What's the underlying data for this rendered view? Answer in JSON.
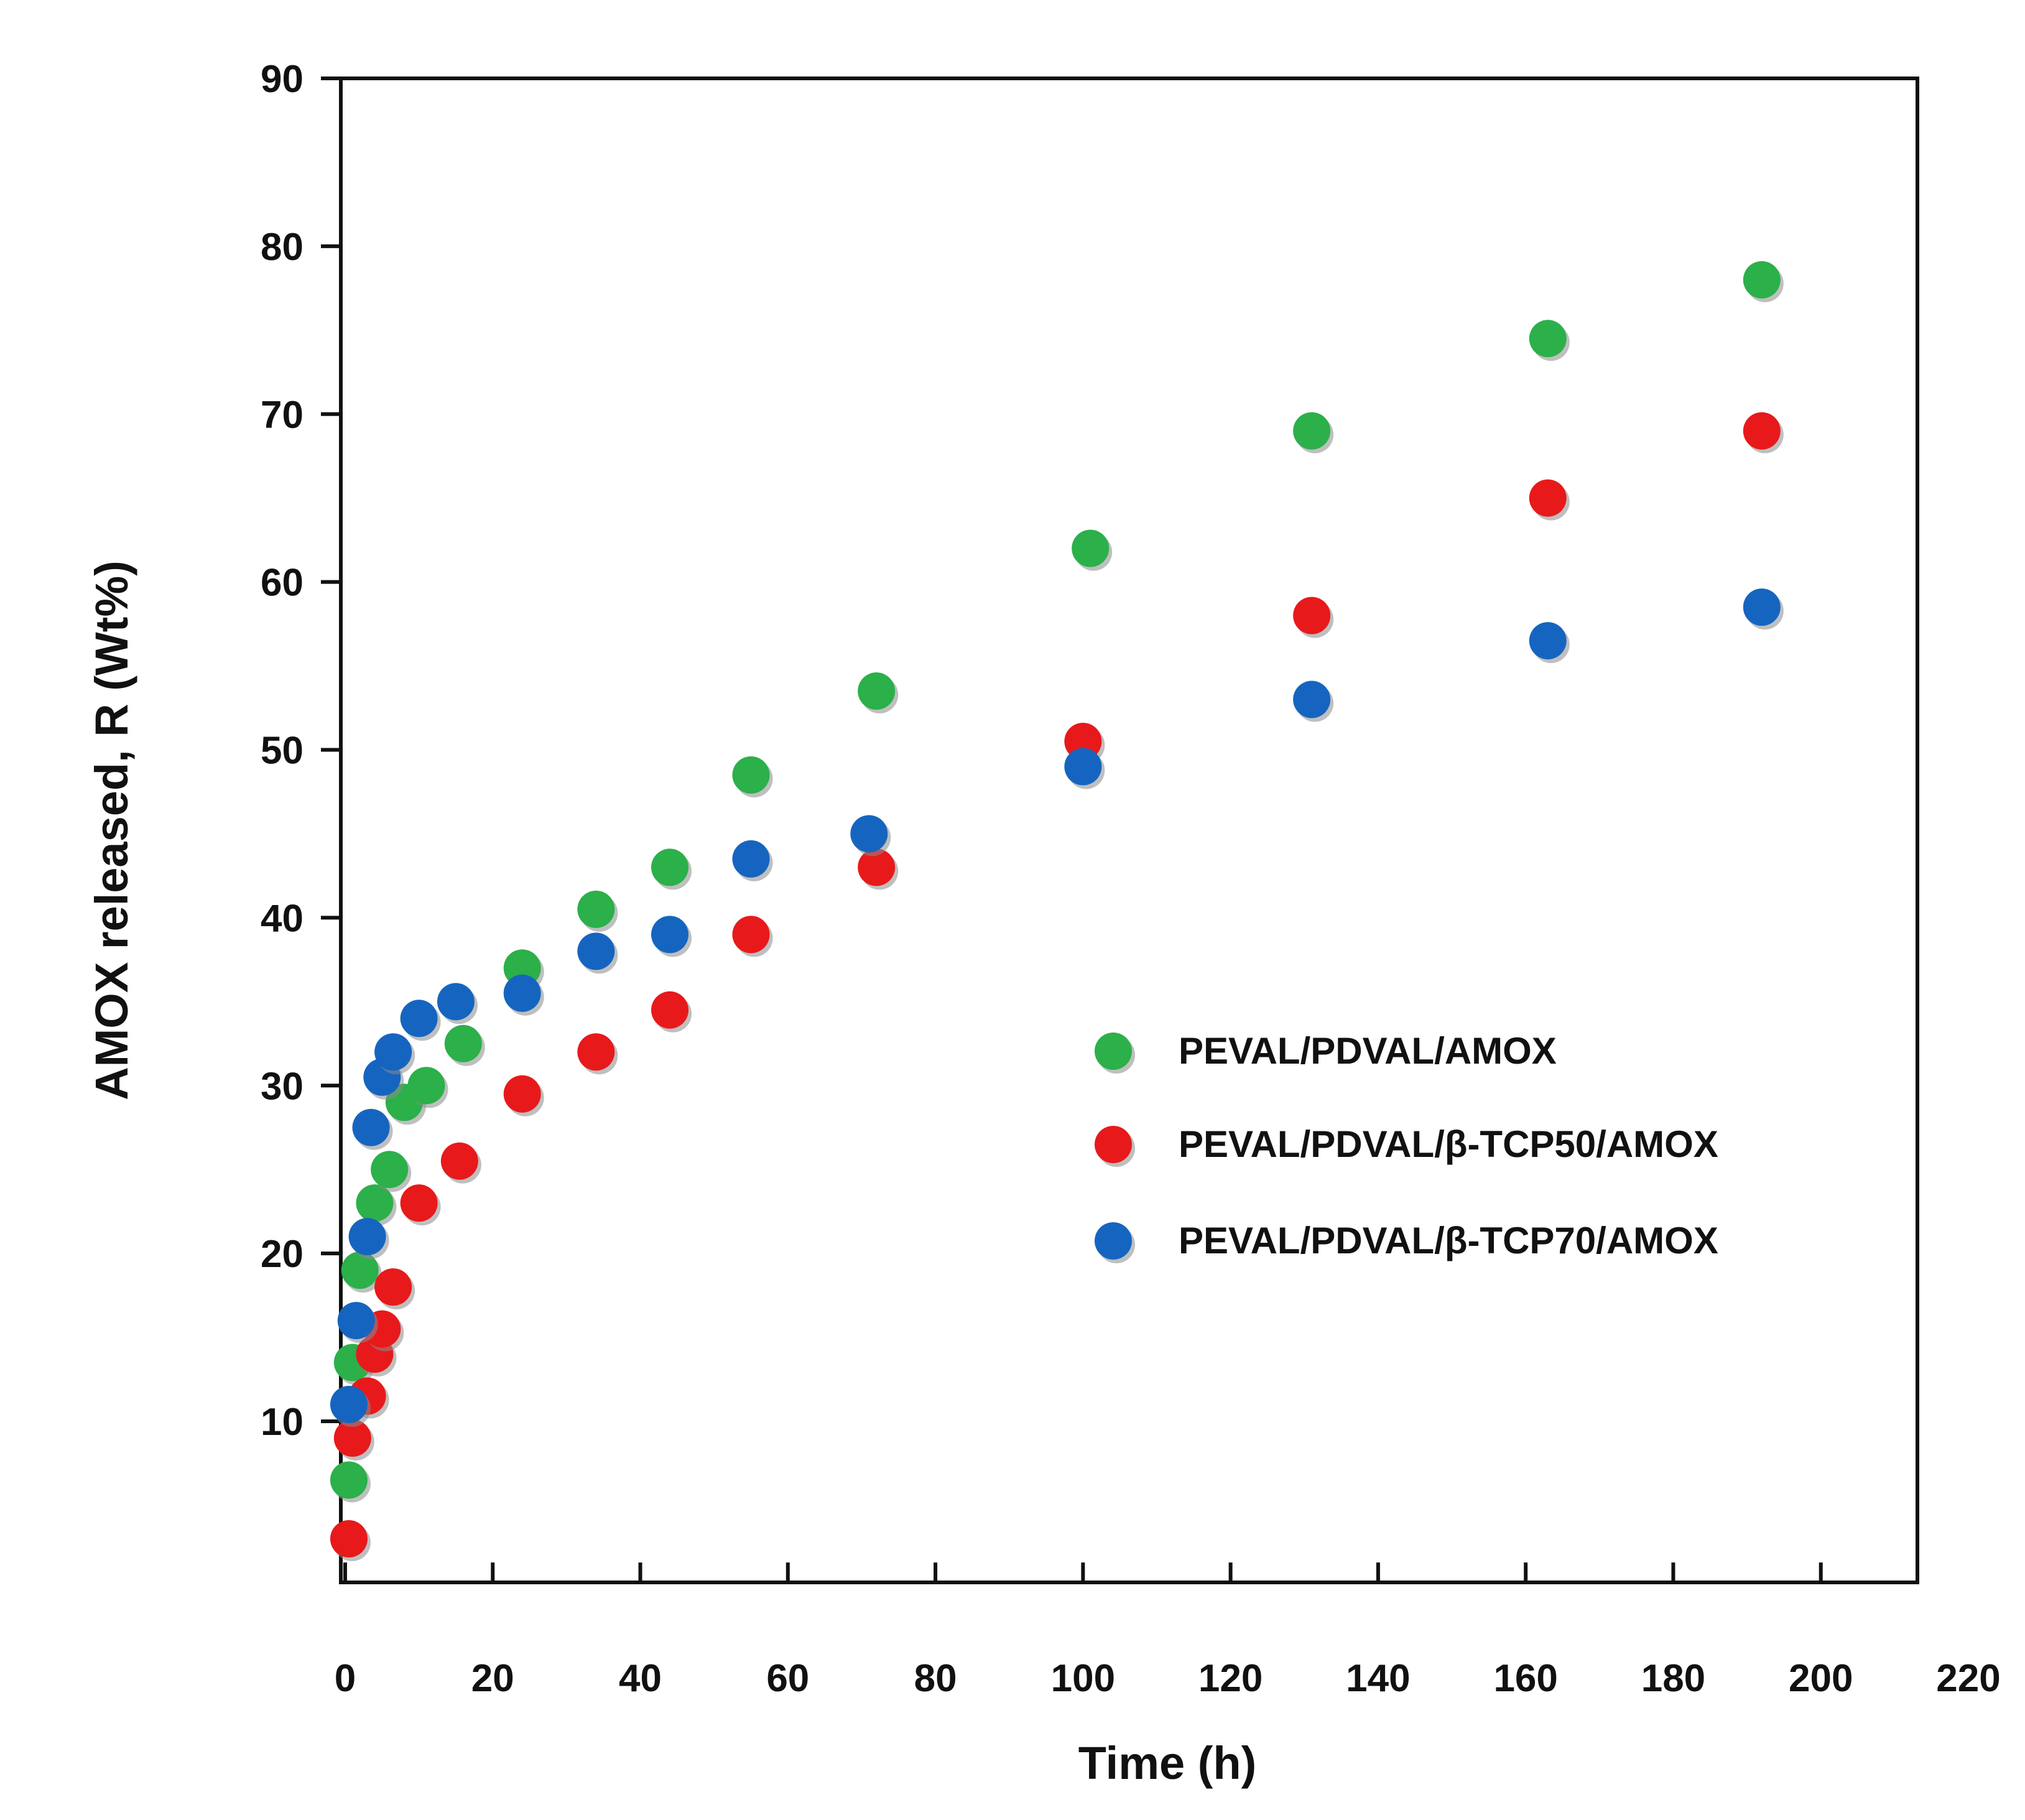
{
  "chart_data": {
    "type": "scatter",
    "title": "",
    "xlabel": "Time (h)",
    "ylabel": "AMOX released, R (Wt%)",
    "xlim": [
      0,
      220
    ],
    "ylim": [
      0,
      90
    ],
    "xticks": [
      0,
      20,
      40,
      60,
      80,
      100,
      120,
      140,
      160,
      180,
      200,
      220
    ],
    "yticks": [
      10,
      20,
      30,
      40,
      50,
      60,
      70,
      80,
      90
    ],
    "legend_position": "center-right",
    "grid": false,
    "series": [
      {
        "name": "PEVAL/PDVAL/AMOX",
        "color": "#2bb04a",
        "x": [
          0.5,
          1,
          2,
          4,
          6,
          8,
          11,
          16,
          24,
          34,
          44,
          55,
          72,
          101,
          131,
          163,
          192
        ],
        "y": [
          6.5,
          13.5,
          19,
          23,
          25,
          29,
          30,
          32.5,
          37,
          40.5,
          43,
          48.5,
          53.5,
          62,
          69,
          74.5,
          78
        ]
      },
      {
        "name": "PEVAL/PDVAL/β-TCP50/AMOX",
        "color": "#e8191b",
        "x": [
          0.5,
          1,
          3,
          4,
          5,
          6.5,
          10,
          15.5,
          24,
          34,
          44,
          55,
          72,
          100,
          131,
          163,
          192
        ],
        "y": [
          3,
          9,
          11.5,
          14,
          15.5,
          18,
          23,
          25.5,
          29.5,
          32,
          34.5,
          39,
          43,
          50.5,
          58,
          65,
          69
        ]
      },
      {
        "name": "PEVAL/PDVAL/β-TCP70/AMOX",
        "color": "#1565c0",
        "x": [
          0.5,
          1.5,
          3,
          3.5,
          5,
          6.5,
          10,
          15,
          24,
          34,
          44,
          55,
          71,
          100,
          131,
          163,
          192
        ],
        "y": [
          11,
          16,
          21,
          27.5,
          30.5,
          32,
          34,
          35,
          35.5,
          38,
          39,
          43.5,
          45,
          49,
          53,
          56.5,
          58.5
        ]
      }
    ]
  }
}
